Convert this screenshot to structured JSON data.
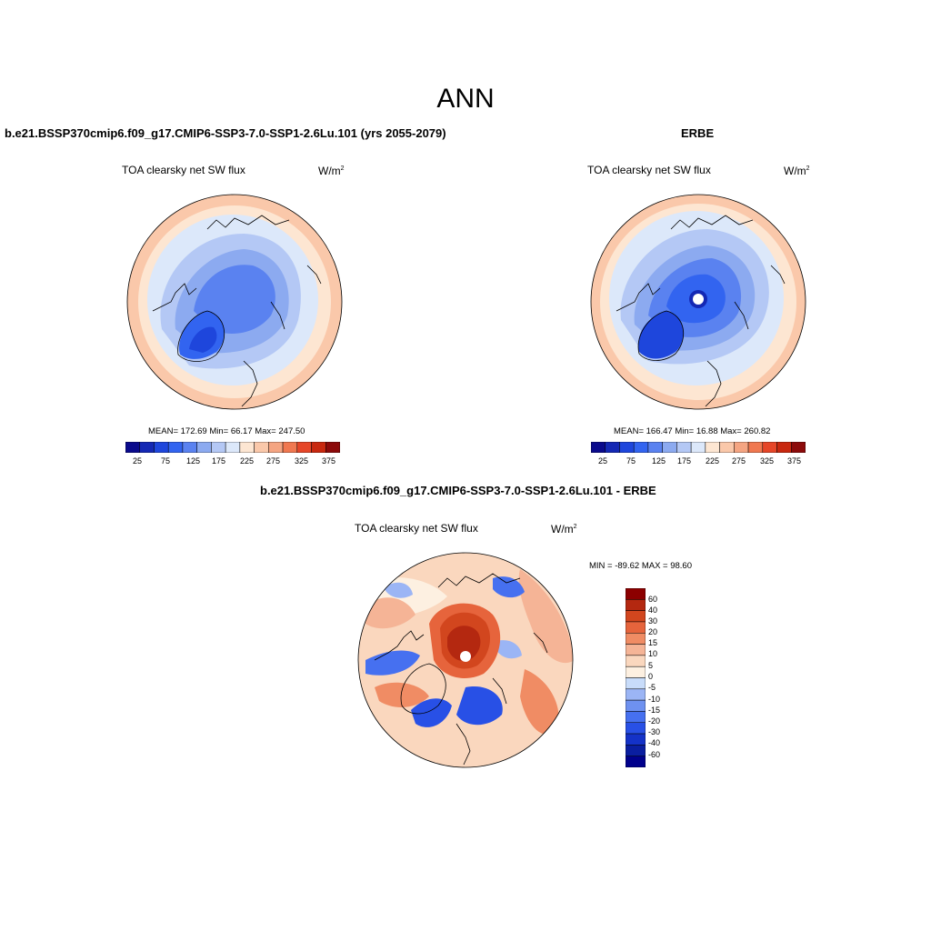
{
  "title": "ANN",
  "colors": {
    "scale_main": [
      "#0a0a8c",
      "#1428b4",
      "#1e46dc",
      "#3264f0",
      "#5a82f0",
      "#8caaf0",
      "#b4c8f5",
      "#dce8fa",
      "#fde6d2",
      "#fac8aa",
      "#f5a582",
      "#f07850",
      "#e64628",
      "#c8280f",
      "#8c0a0a"
    ],
    "scale_diff": [
      "#00008c",
      "#0a1ea0",
      "#1432c8",
      "#2850e6",
      "#4670f0",
      "#6e91f0",
      "#9bb5f5",
      "#c8dcfa",
      "#fdf0e1",
      "#fad7be",
      "#f5b496",
      "#f08c64",
      "#e6643c",
      "#d2461e",
      "#b42810",
      "#8c0000"
    ],
    "coastline": "#000000"
  },
  "panels": [
    {
      "id": "model",
      "title": "b.e21.BSSP370cmip6.f09_g17.CMIP6-SSP3-7.0-SSP1-2.6Lu.101 (yrs 2055-2079)",
      "variable": "TOA clearsky net SW flux",
      "units_base": "W/m",
      "units_exp": "2",
      "stats": "MEAN= 172.69  Min=  66.17  Max= 247.50",
      "colorbar_ticks": [
        "25",
        "75",
        "125",
        "175",
        "225",
        "275",
        "325",
        "375"
      ]
    },
    {
      "id": "obs",
      "title": "ERBE",
      "variable": "TOA clearsky net SW flux",
      "units_base": "W/m",
      "units_exp": "2",
      "stats": "MEAN= 166.47  Min=  16.88  Max= 260.82",
      "colorbar_ticks": [
        "25",
        "75",
        "125",
        "175",
        "225",
        "275",
        "325",
        "375"
      ]
    },
    {
      "id": "diff",
      "title": "b.e21.BSSP370cmip6.f09_g17.CMIP6-SSP3-7.0-SSP1-2.6Lu.101 - ERBE",
      "variable": "TOA clearsky net SW flux",
      "units_base": "W/m",
      "units_exp": "2",
      "stats": "MIN = -89.62 MAX =  98.60",
      "colorbar_ticks": [
        "60",
        "40",
        "30",
        "20",
        "15",
        "10",
        "5",
        "0",
        "-5",
        "-10",
        "-15",
        "-20",
        "-30",
        "-40",
        "-60"
      ]
    }
  ]
}
